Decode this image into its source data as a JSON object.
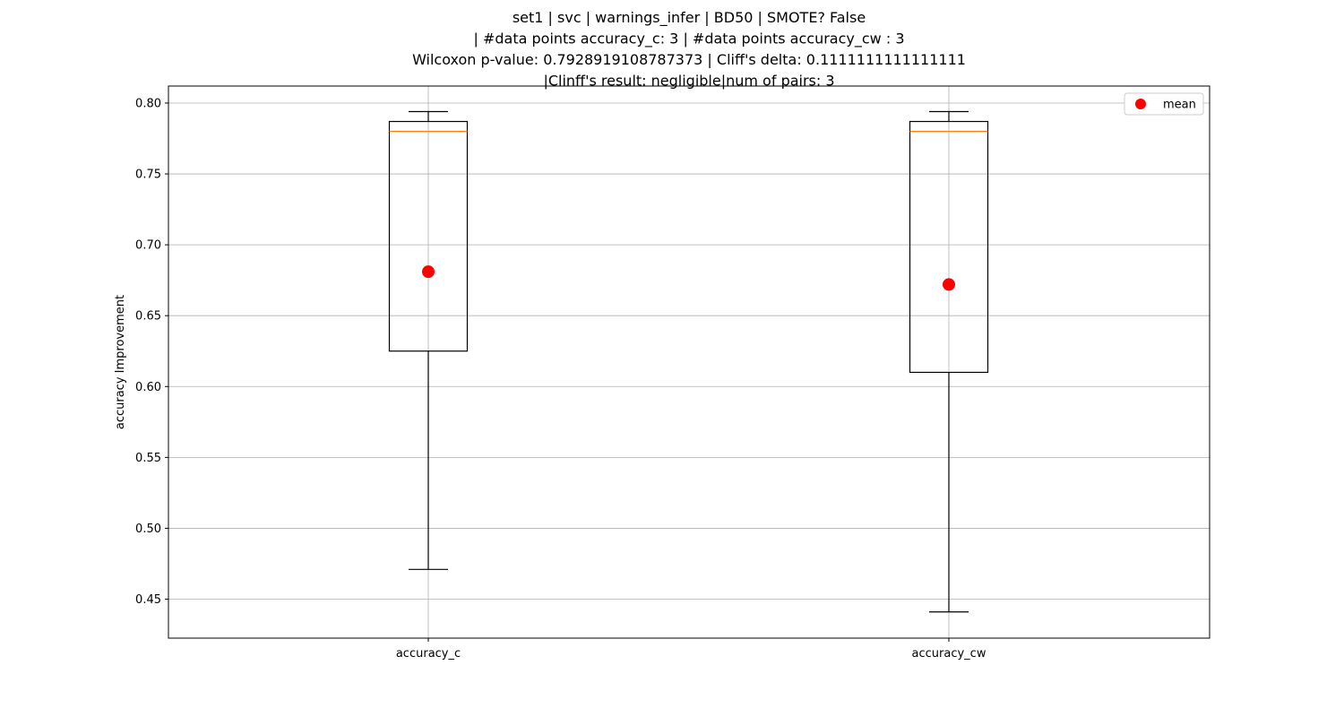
{
  "chart_data": {
    "type": "box",
    "title_lines": [
      "set1 | svc | warnings_infer | BD50 | SMOTE? False",
      "| #data points accuracy_c: 3 | #data points accuracy_cw : 3",
      "Wilcoxon p-value: 0.7928919108787373 | Cliff's delta: 0.1111111111111111",
      "|Clinff's result: negligible|num of pairs: 3"
    ],
    "xlabel": "",
    "ylabel": "accuracy Improvement",
    "ylim": [
      0.4225,
      0.812
    ],
    "yticks": [
      "0.45",
      "0.50",
      "0.55",
      "0.60",
      "0.65",
      "0.70",
      "0.75",
      "0.80"
    ],
    "grid": true,
    "legend": {
      "placement": "top-right",
      "entries": [
        {
          "label": "mean",
          "color": "#ff0000",
          "marker": "circle"
        }
      ]
    },
    "categories": [
      "accuracy_c",
      "accuracy_cw"
    ],
    "boxes": [
      {
        "category": "accuracy_c",
        "whisker_low": 0.471,
        "q1": 0.625,
        "median": 0.78,
        "q3": 0.787,
        "whisker_high": 0.794,
        "mean": 0.681
      },
      {
        "category": "accuracy_cw",
        "whisker_low": 0.441,
        "q1": 0.61,
        "median": 0.78,
        "q3": 0.787,
        "whisker_high": 0.794,
        "mean": 0.672
      }
    ],
    "colors": {
      "box": "#000000",
      "median": "#ff7f0e",
      "mean": "#ff0000",
      "grid": "#b0b0b0"
    }
  }
}
